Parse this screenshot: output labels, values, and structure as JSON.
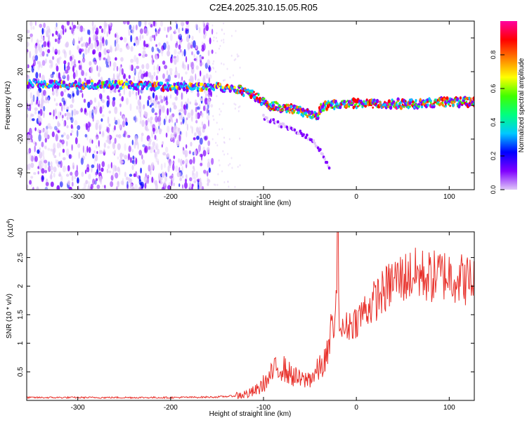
{
  "figure": {
    "title": "C2E4.2025.310.15.05.R05"
  },
  "chart_data": [
    {
      "type": "heatmap",
      "xlabel": "Height of straight line (km)",
      "ylabel": "Frequency (Hz)",
      "xlim": [
        -355,
        127
      ],
      "ylim": [
        -50,
        50
      ],
      "xticks": [
        -300,
        -200,
        -100,
        0,
        100
      ],
      "xtick_labels": [
        "-300",
        "-200",
        "-100",
        "0",
        "100"
      ],
      "yticks": [
        -40,
        -20,
        0,
        20,
        40
      ],
      "ytick_labels": [
        "-40",
        "-20",
        "0",
        "20",
        "40"
      ],
      "grid": false,
      "colorbar": {
        "label": "Normalized spectral amplitude",
        "range": [
          0,
          1
        ],
        "ticks": [
          0.0,
          0.2,
          0.4,
          0.6,
          0.8
        ],
        "tick_labels": [
          "0.0",
          "0.2",
          "0.4",
          "0.6",
          "0.8"
        ],
        "colormap": [
          "#e0c8f8",
          "#8000ff",
          "#0000ff",
          "#00c8ff",
          "#00ff80",
          "#40ff00",
          "#ffff00",
          "#ff8000",
          "#ff0000",
          "#ff00a0"
        ]
      },
      "ridge": {
        "x": [
          -355,
          -300,
          -250,
          -200,
          -170,
          -150,
          -130,
          -110,
          -95,
          -80,
          -65,
          -50,
          -42,
          -38,
          -30,
          -20,
          0,
          50,
          100,
          127
        ],
        "y": [
          13,
          12,
          12,
          11,
          11,
          11,
          10,
          6,
          0,
          -1,
          -3,
          -5,
          -6,
          -1,
          0,
          1,
          1,
          1,
          2,
          2
        ]
      },
      "tail": {
        "x": [
          -100,
          -80,
          -60,
          -45,
          -35,
          -28
        ],
        "y": [
          -7,
          -12,
          -16,
          -22,
          -30,
          -40
        ]
      },
      "noise_region": {
        "x": [
          -355,
          -155
        ],
        "y": [
          -50,
          50
        ]
      }
    },
    {
      "type": "line",
      "xlabel": "Height of straight line (km)",
      "ylabel": "SNR (10 * v/v)",
      "multiplier": "(x10",
      "multiplier_exp": "4",
      "multiplier_close": ")",
      "xlim": [
        -355,
        127
      ],
      "ylim": [
        0,
        2.95
      ],
      "xticks": [
        -300,
        -200,
        -100,
        0,
        100
      ],
      "xtick_labels": [
        "-300",
        "-200",
        "-100",
        "0",
        "100"
      ],
      "yticks": [
        0.5,
        1.0,
        1.5,
        2.0,
        2.5
      ],
      "ytick_labels": [
        "0.5",
        "1",
        "1.5",
        "2",
        "2.5"
      ],
      "grid": false,
      "series": [
        {
          "color": "#e8302a",
          "x": [
            -355,
            -300,
            -250,
            -200,
            -150,
            -130,
            -115,
            -105,
            -100,
            -95,
            -90,
            -85,
            -80,
            -75,
            -70,
            -65,
            -60,
            -55,
            -50,
            -45,
            -40,
            -35,
            -30,
            -27,
            -25,
            -22,
            -20,
            -18,
            -15,
            -10,
            -5,
            0,
            5,
            10,
            15,
            20,
            25,
            30,
            35,
            40,
            50,
            60,
            70,
            80,
            90,
            100,
            110,
            120,
            127
          ],
          "y": [
            0.05,
            0.05,
            0.05,
            0.05,
            0.06,
            0.08,
            0.12,
            0.2,
            0.3,
            0.35,
            0.5,
            0.55,
            0.6,
            0.5,
            0.45,
            0.4,
            0.35,
            0.35,
            0.4,
            0.45,
            0.55,
            0.65,
            0.8,
            1.4,
            1.2,
            1.5,
            2.95,
            1.3,
            1.2,
            1.3,
            1.35,
            1.4,
            1.5,
            1.6,
            1.65,
            1.75,
            1.85,
            1.9,
            2.0,
            2.1,
            2.15,
            2.2,
            2.2,
            2.15,
            2.2,
            2.2,
            2.15,
            2.1,
            2.1
          ]
        }
      ]
    }
  ]
}
